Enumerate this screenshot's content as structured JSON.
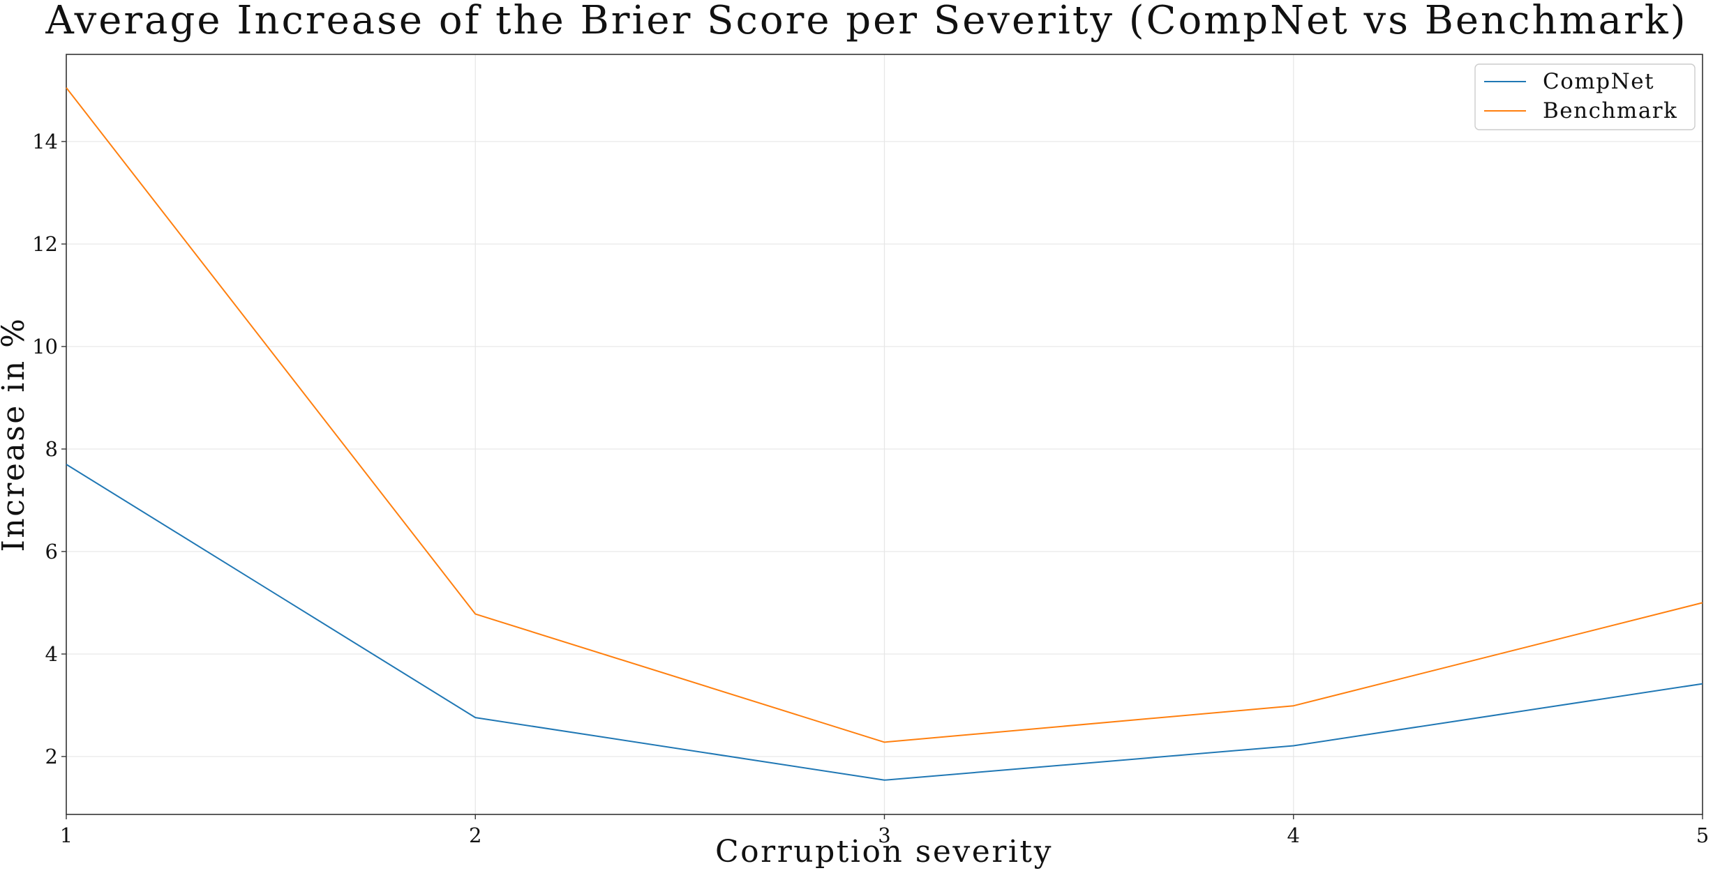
{
  "chart_data": {
    "type": "line",
    "title": "Average Increase of the Brier Score per Severity (CompNet vs Benchmark)",
    "xlabel": "Corruption severity",
    "ylabel": "Increase in %",
    "x": [
      1,
      2,
      3,
      4,
      5
    ],
    "xticks": [
      "1",
      "2",
      "3",
      "4",
      "5"
    ],
    "yticks": [
      "2",
      "4",
      "6",
      "8",
      "10",
      "12",
      "14"
    ],
    "xlim": [
      1,
      5
    ],
    "ylim": [
      0.87,
      15.7
    ],
    "grid": true,
    "legend_position": "top-right",
    "series": [
      {
        "name": "CompNet",
        "color": "#1f77b4",
        "values": [
          7.7,
          2.76,
          1.54,
          2.21,
          3.42
        ]
      },
      {
        "name": "Benchmark",
        "color": "#ff7f0e",
        "values": [
          15.05,
          4.78,
          2.28,
          2.99,
          5.0
        ]
      }
    ]
  }
}
